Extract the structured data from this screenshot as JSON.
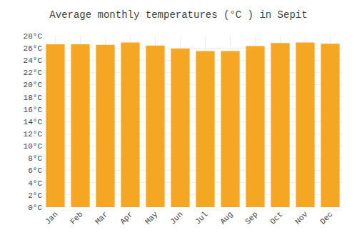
{
  "chart_data": {
    "type": "bar",
    "title": "Average monthly temperatures (°C ) in Sepit",
    "categories": [
      "Jan",
      "Feb",
      "Mar",
      "Apr",
      "May",
      "Jun",
      "Jul",
      "Aug",
      "Sep",
      "Oct",
      "Nov",
      "Dec"
    ],
    "values": [
      26.6,
      26.6,
      26.5,
      26.9,
      26.4,
      25.9,
      25.5,
      25.5,
      26.3,
      26.8,
      26.9,
      26.7
    ],
    "color": "#F5A623",
    "ylim": [
      0,
      28
    ],
    "yticks": [
      {
        "value": 0,
        "label": "0°C"
      },
      {
        "value": 2,
        "label": "2°C"
      },
      {
        "value": 4,
        "label": "4°C"
      },
      {
        "value": 6,
        "label": "6°C"
      },
      {
        "value": 8,
        "label": "8°C"
      },
      {
        "value": 10,
        "label": "10°C"
      },
      {
        "value": 12,
        "label": "12°C"
      },
      {
        "value": 14,
        "label": "14°C"
      },
      {
        "value": 16,
        "label": "16°C"
      },
      {
        "value": 18,
        "label": "18°C"
      },
      {
        "value": 20,
        "label": "20°C"
      },
      {
        "value": 22,
        "label": "22°C"
      },
      {
        "value": 24,
        "label": "24°C"
      },
      {
        "value": 26,
        "label": "26°C"
      },
      {
        "value": 28,
        "label": "28°C"
      }
    ],
    "grid": true
  }
}
